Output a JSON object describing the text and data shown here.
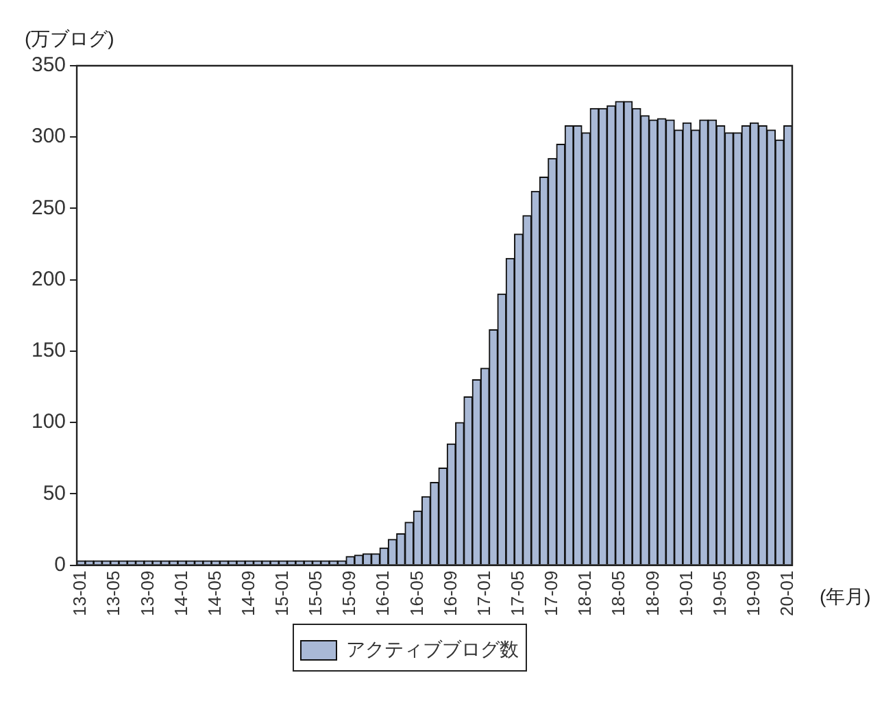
{
  "chart_data": {
    "type": "bar",
    "ylabel": "(万ブログ)",
    "xlabel": "(年月)",
    "categories": [
      "13-01",
      null,
      null,
      null,
      "13-05",
      null,
      null,
      null,
      "13-09",
      null,
      null,
      null,
      "14-01",
      null,
      null,
      null,
      "14-05",
      null,
      null,
      null,
      "14-09",
      null,
      null,
      null,
      "15-01",
      null,
      null,
      null,
      "15-05",
      null,
      null,
      null,
      "15-09",
      null,
      null,
      null,
      "16-01",
      null,
      null,
      null,
      "16-05",
      null,
      null,
      null,
      "16-09",
      null,
      null,
      null,
      "17-01",
      null,
      null,
      null,
      "17-05",
      null,
      null,
      null,
      "17-09",
      null,
      null,
      null,
      "18-01",
      null,
      null,
      null,
      "18-05",
      null,
      null,
      null,
      "18-09",
      null,
      null,
      null,
      "19-01",
      null,
      null,
      null,
      "19-05",
      null,
      null,
      null,
      "19-09",
      null,
      null,
      null,
      "20-01"
    ],
    "series": [
      {
        "name": "アクティブブログ数",
        "color": "#a9b9d6",
        "values": [
          3,
          3,
          3,
          3,
          3,
          3,
          3,
          3,
          3,
          3,
          3,
          3,
          3,
          3,
          3,
          3,
          3,
          3,
          3,
          3,
          3,
          3,
          3,
          3,
          3,
          3,
          3,
          3,
          3,
          3,
          3,
          3,
          6,
          7,
          8,
          8,
          12,
          18,
          22,
          30,
          38,
          48,
          58,
          68,
          85,
          100,
          118,
          130,
          138,
          165,
          190,
          215,
          232,
          245,
          262,
          272,
          285,
          295,
          308,
          308,
          303,
          320,
          320,
          322,
          325,
          325,
          320,
          315,
          312,
          313,
          312,
          305,
          310,
          305,
          312,
          312,
          308,
          303,
          303,
          308,
          310,
          308,
          305,
          298,
          308
        ]
      }
    ],
    "ylim": [
      0,
      350
    ],
    "yticks": [
      0,
      50,
      100,
      150,
      200,
      250,
      300,
      350
    ],
    "grid": false,
    "legend": "bottom"
  }
}
